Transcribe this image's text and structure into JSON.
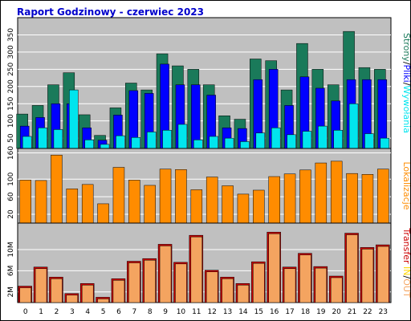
{
  "title": "Raport Godzinowy -  czerwiec 2023",
  "colors": {
    "background": "#ffffff",
    "panel": "#c0c0c0",
    "grid": "#ffffff",
    "title": "#0000cc",
    "strony": "#1a7a5a",
    "pliki": "#0000ff",
    "wywolania": "#00e5ee",
    "lokalizacje": "#ff8c00",
    "transfer": "#cc0000",
    "in": "#ffd700",
    "out": "#f4a460"
  },
  "chart_data": [
    {
      "type": "bar",
      "name": "hits",
      "categories": [
        "0",
        "1",
        "2",
        "3",
        "4",
        "5",
        "6",
        "7",
        "8",
        "9",
        "10",
        "11",
        "12",
        "13",
        "14",
        "15",
        "16",
        "17",
        "18",
        "19",
        "20",
        "21",
        "22",
        "23"
      ],
      "yticks": [
        "50",
        "100",
        "150",
        "200",
        "250",
        "300",
        "350"
      ],
      "ylim": [
        20,
        400
      ],
      "series": [
        {
          "name": "Strony",
          "values": [
            120,
            145,
            205,
            240,
            118,
            58,
            138,
            210,
            190,
            295,
            260,
            250,
            205,
            115,
            105,
            280,
            275,
            190,
            325,
            250,
            205,
            360,
            255,
            250
          ]
        },
        {
          "name": "Pliki",
          "values": [
            85,
            110,
            150,
            150,
            80,
            44,
            117,
            188,
            180,
            265,
            205,
            205,
            175,
            80,
            78,
            220,
            250,
            145,
            228,
            195,
            158,
            220,
            220,
            220
          ]
        },
        {
          "name": "Wywołania",
          "values": [
            55,
            80,
            75,
            190,
            45,
            32,
            57,
            52,
            68,
            73,
            90,
            45,
            55,
            50,
            40,
            65,
            80,
            60,
            70,
            85,
            73,
            150,
            63,
            50
          ]
        }
      ],
      "legend": [
        {
          "text": "Strony",
          "color": "#1a7a5a"
        },
        {
          "text": "/",
          "color": "#000000"
        },
        {
          "text": "Pliki",
          "color": "#0000ff"
        },
        {
          "text": "/",
          "color": "#000000"
        },
        {
          "text": "Wywołania",
          "color": "#00e5ee"
        }
      ]
    },
    {
      "type": "bar",
      "name": "locations",
      "categories": [
        "0",
        "1",
        "2",
        "3",
        "4",
        "5",
        "6",
        "7",
        "8",
        "9",
        "10",
        "11",
        "12",
        "13",
        "14",
        "15",
        "16",
        "17",
        "18",
        "19",
        "20",
        "21",
        "22",
        "23"
      ],
      "yticks": [
        "20",
        "60",
        "100",
        "160"
      ],
      "ylim": [
        0,
        170
      ],
      "series": [
        {
          "name": "Lokalizacje",
          "values": [
            98,
            97,
            155,
            78,
            88,
            44,
            127,
            98,
            86,
            123,
            122,
            76,
            105,
            85,
            66,
            75,
            106,
            112,
            121,
            137,
            141,
            113,
            111,
            123
          ]
        }
      ],
      "legend": [
        {
          "text": "Lokalizacje",
          "color": "#ff8c00"
        }
      ]
    },
    {
      "type": "bar",
      "name": "transfer",
      "categories": [
        "0",
        "1",
        "2",
        "3",
        "4",
        "5",
        "6",
        "7",
        "8",
        "9",
        "10",
        "11",
        "12",
        "13",
        "14",
        "15",
        "16",
        "17",
        "18",
        "19",
        "20",
        "21",
        "22",
        "23"
      ],
      "yticks": [
        "2M",
        "6M",
        "10M"
      ],
      "ylim": [
        0,
        15
      ],
      "series": [
        {
          "name": "Transfer",
          "values": [
            3.1,
            6.7,
            4.8,
            1.7,
            3.6,
            1.0,
            4.5,
            7.8,
            8.3,
            11.0,
            7.6,
            12.7,
            6.1,
            4.8,
            3.6,
            7.7,
            13.3,
            6.7,
            9.3,
            6.8,
            5.0,
            13.1,
            10.4,
            10.9
          ]
        }
      ],
      "legend": [
        {
          "text": "Transfer",
          "color": "#cc0000"
        },
        {
          "text": "IN",
          "color": "#ffd700"
        },
        {
          "text": "/",
          "color": "#000000"
        },
        {
          "text": "OUT",
          "color": "#f4a460"
        }
      ]
    }
  ]
}
